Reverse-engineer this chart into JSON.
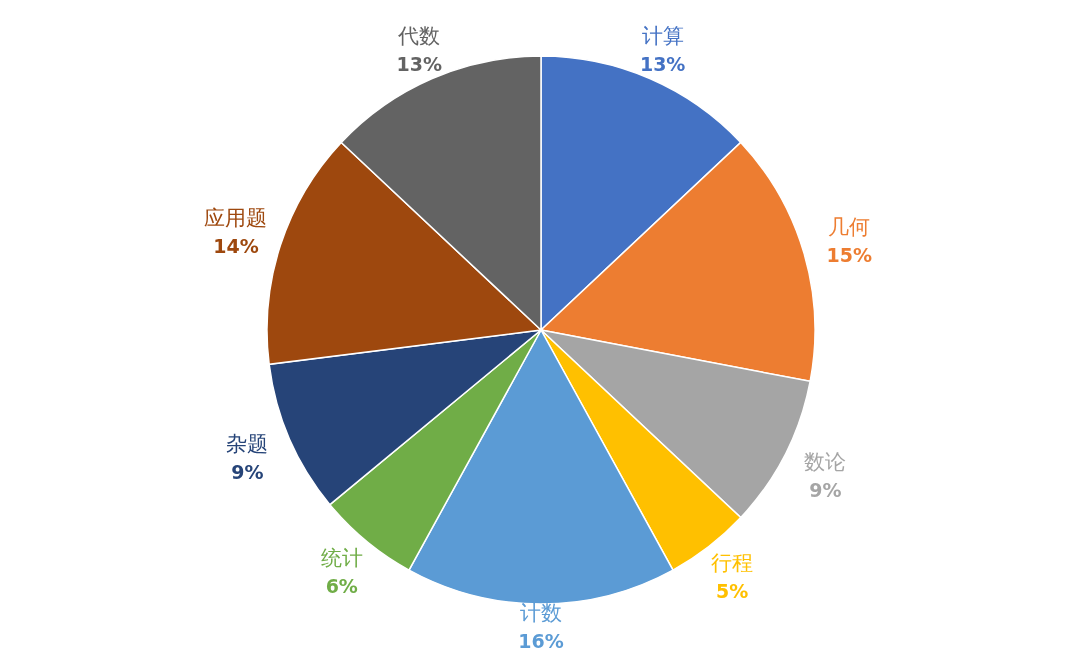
{
  "chart_data": {
    "type": "pie",
    "categories": [
      "计算",
      "几何",
      "数论",
      "行程",
      "计数",
      "统计",
      "杂题",
      "应用题",
      "代数"
    ],
    "values": [
      13,
      15,
      9,
      5,
      16,
      6,
      9,
      14,
      13
    ],
    "value_labels": [
      "13%",
      "15%",
      "9%",
      "5%",
      "16%",
      "6%",
      "9%",
      "14%",
      "13%"
    ],
    "colors": [
      "#4472c4",
      "#ed7d31",
      "#a5a5a5",
      "#ffc000",
      "#5b9bd5",
      "#70ad47",
      "#264478",
      "#9e480e",
      "#636363"
    ]
  }
}
